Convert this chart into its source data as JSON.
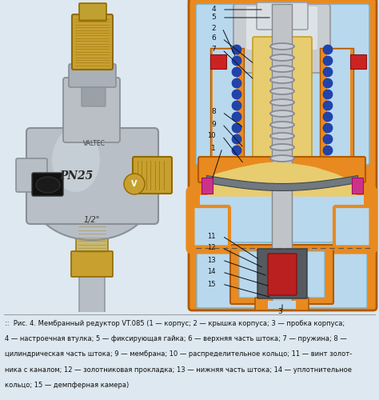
{
  "bg_color": "#dde8f0",
  "fig_width": 4.74,
  "fig_height": 5.0,
  "dpi": 100,
  "caption_lines": [
    "::  Рис. 4. Мембранный редуктор VT.085 (1 — корпус; 2 — крышка корпуса; 3 — пробка корпуса;",
    "4 — настроечная втулка; 5 — фиксирующая гайка; 6 — верхняя часть штока; 7 — пружина; 8 —",
    "цилиндрическая часть штока; 9 — мембрана; 10 — распределительное кольцо; 11 — винт золот-",
    "ника с каналом; 12 — золотниковая прокладка; 13 — нижняя часть штока; 14 — уплотнительное",
    "кольцо; 15 — демпферная камера)"
  ],
  "caption_bold_words": [
    "1",
    "2",
    "3",
    "4",
    "5",
    "6",
    "7",
    "8",
    "9",
    "10",
    "11",
    "12",
    "13",
    "14",
    "15"
  ],
  "caption_fontsize": 6.0,
  "separator_color": "#999999",
  "label_color": "#111111",
  "orange": "#e88a20",
  "orange_dark": "#b05a00",
  "blue_light": "#b8d8ee",
  "blue_mid": "#7ab0cc",
  "gray_light": "#c8cdd2",
  "gray_mid": "#9aa0a8",
  "yellow": "#e8cc70",
  "yellow_dark": "#c8a020",
  "red_sq": "#cc2222",
  "blue_dot": "#2244aa",
  "silver": "#b8bec5",
  "silver_dark": "#8a9098",
  "brass": "#c8a030",
  "brass_dark": "#906a00",
  "black_part": "#111111",
  "pink_seal": "#cc3388"
}
